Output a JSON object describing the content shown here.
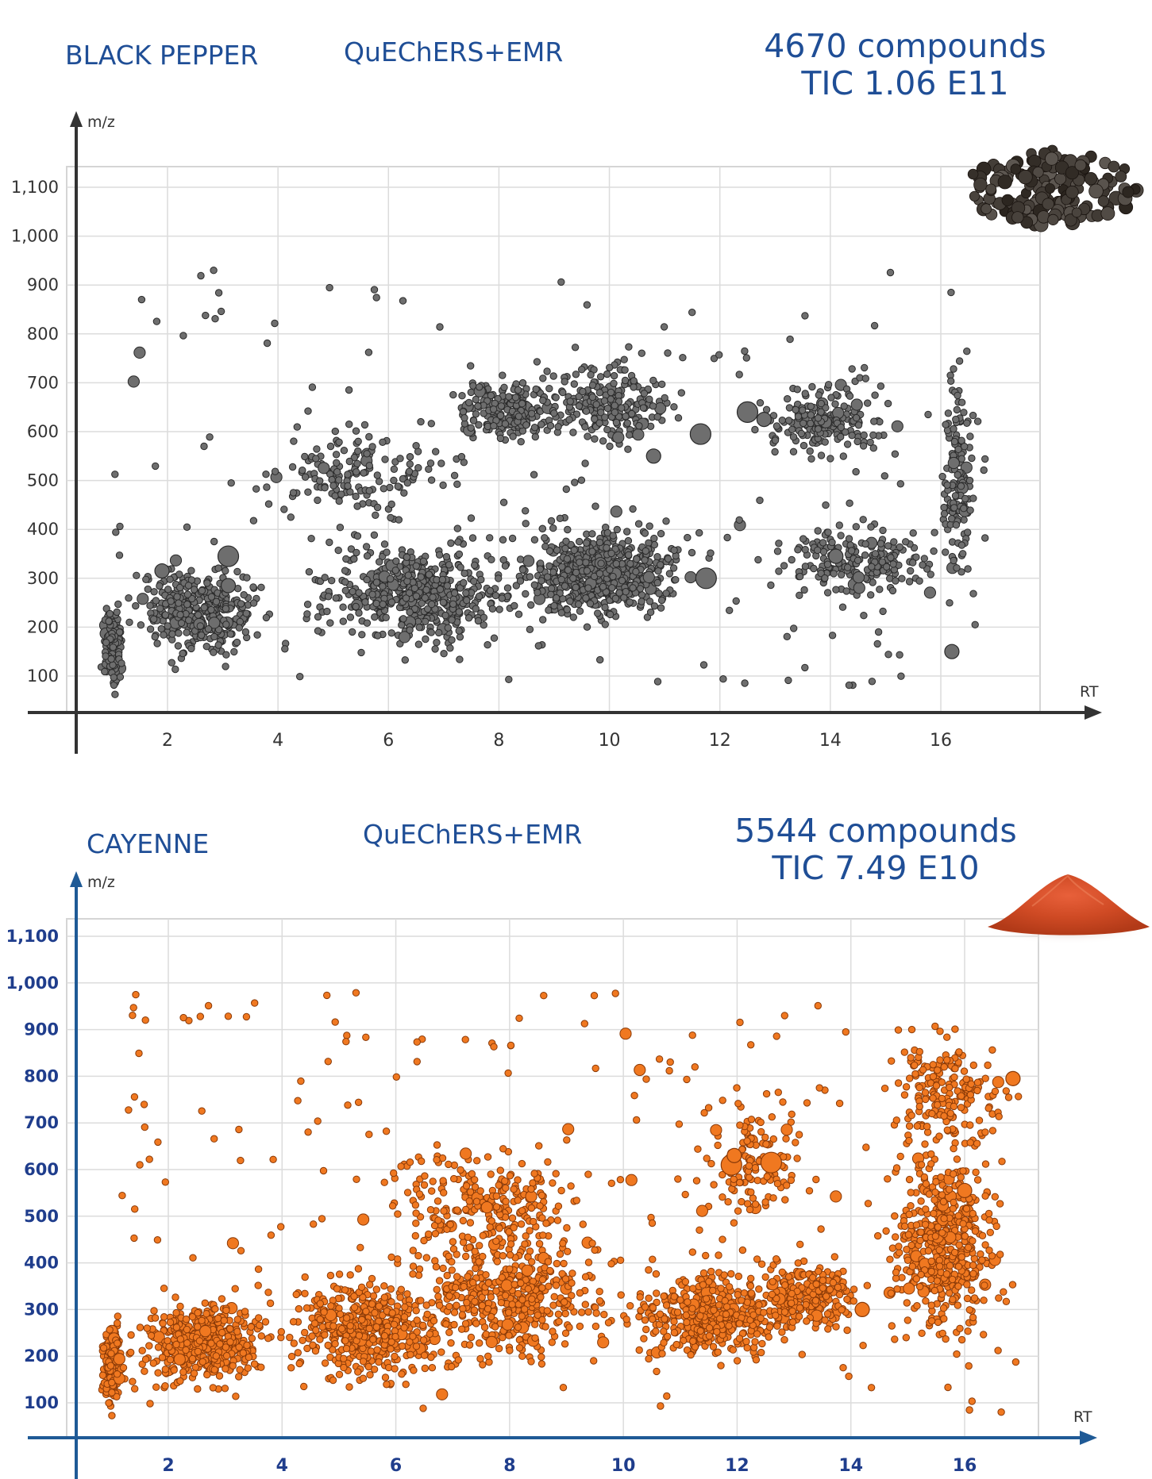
{
  "panels": [
    {
      "sample": "BLACK PEPPER",
      "method": "QuEChERS+EMR",
      "compounds": "4670 compounds",
      "tic": "TIC 1.06 E11",
      "image": "black-peppercorns-photo",
      "chart_data": {
        "type": "scatter",
        "title": "",
        "xlabel": "RT",
        "ylabel": "m/z",
        "xlim": [
          0,
          17.8
        ],
        "ylim": [
          0,
          1160
        ],
        "xticks": [
          2,
          4,
          6,
          8,
          10,
          12,
          14,
          16
        ],
        "yticks": [
          100,
          200,
          300,
          400,
          500,
          600,
          700,
          800,
          900,
          1000,
          1100
        ],
        "ytick_labels": [
          "100",
          "200",
          "300",
          "400",
          "500",
          "600",
          "700",
          "800",
          "900",
          "1,000",
          "1,100"
        ],
        "grid": true,
        "marker_color": "#6e6e6e",
        "marker_edge": "#2a2a2a",
        "axis_color": "#333333",
        "tick_color": "#333333",
        "highlights": [
          {
            "x": 3.1,
            "y": 345,
            "size": "large"
          },
          {
            "x": 3.1,
            "y": 285,
            "size": "medium"
          },
          {
            "x": 1.9,
            "y": 315,
            "size": "medium"
          },
          {
            "x": 11.65,
            "y": 595,
            "size": "large"
          },
          {
            "x": 11.75,
            "y": 300,
            "size": "large"
          },
          {
            "x": 12.5,
            "y": 640,
            "size": "large"
          },
          {
            "x": 12.8,
            "y": 625,
            "size": "medium"
          },
          {
            "x": 14.1,
            "y": 345,
            "size": "medium"
          },
          {
            "x": 10.8,
            "y": 550,
            "size": "medium"
          },
          {
            "x": 16.2,
            "y": 150,
            "size": "medium"
          }
        ],
        "compound_count": 4670
      }
    },
    {
      "sample": "CAYENNE",
      "method": "QuEChERS+EMR",
      "compounds": "5544 compounds",
      "tic": "TIC 7.49 E10",
      "image": "cayenne-powder-photo",
      "chart_data": {
        "type": "scatter",
        "title": "",
        "xlabel": "RT",
        "ylabel": "m/z",
        "xlim": [
          0,
          17.8
        ],
        "ylim": [
          0,
          1160
        ],
        "xticks": [
          2,
          4,
          6,
          8,
          10,
          12,
          14,
          16
        ],
        "yticks": [
          100,
          200,
          300,
          400,
          500,
          600,
          700,
          800,
          900,
          1000,
          1100
        ],
        "ytick_labels": [
          "100",
          "200",
          "300",
          "400",
          "500",
          "600",
          "700",
          "800",
          "900",
          "1,000",
          "1,100"
        ],
        "grid": true,
        "marker_color": "#f07820",
        "marker_edge": "#8a3a08",
        "axis_color": "#1f5a96",
        "tick_color": "#1f3d8c",
        "highlights": [
          {
            "x": 11.9,
            "y": 610,
            "size": "large"
          },
          {
            "x": 11.95,
            "y": 630,
            "size": "medium"
          },
          {
            "x": 12.6,
            "y": 615,
            "size": "large"
          },
          {
            "x": 16.85,
            "y": 795,
            "size": "medium"
          },
          {
            "x": 14.2,
            "y": 300,
            "size": "medium"
          },
          {
            "x": 16.0,
            "y": 555,
            "size": "medium"
          }
        ],
        "compound_count": 5544
      }
    }
  ]
}
